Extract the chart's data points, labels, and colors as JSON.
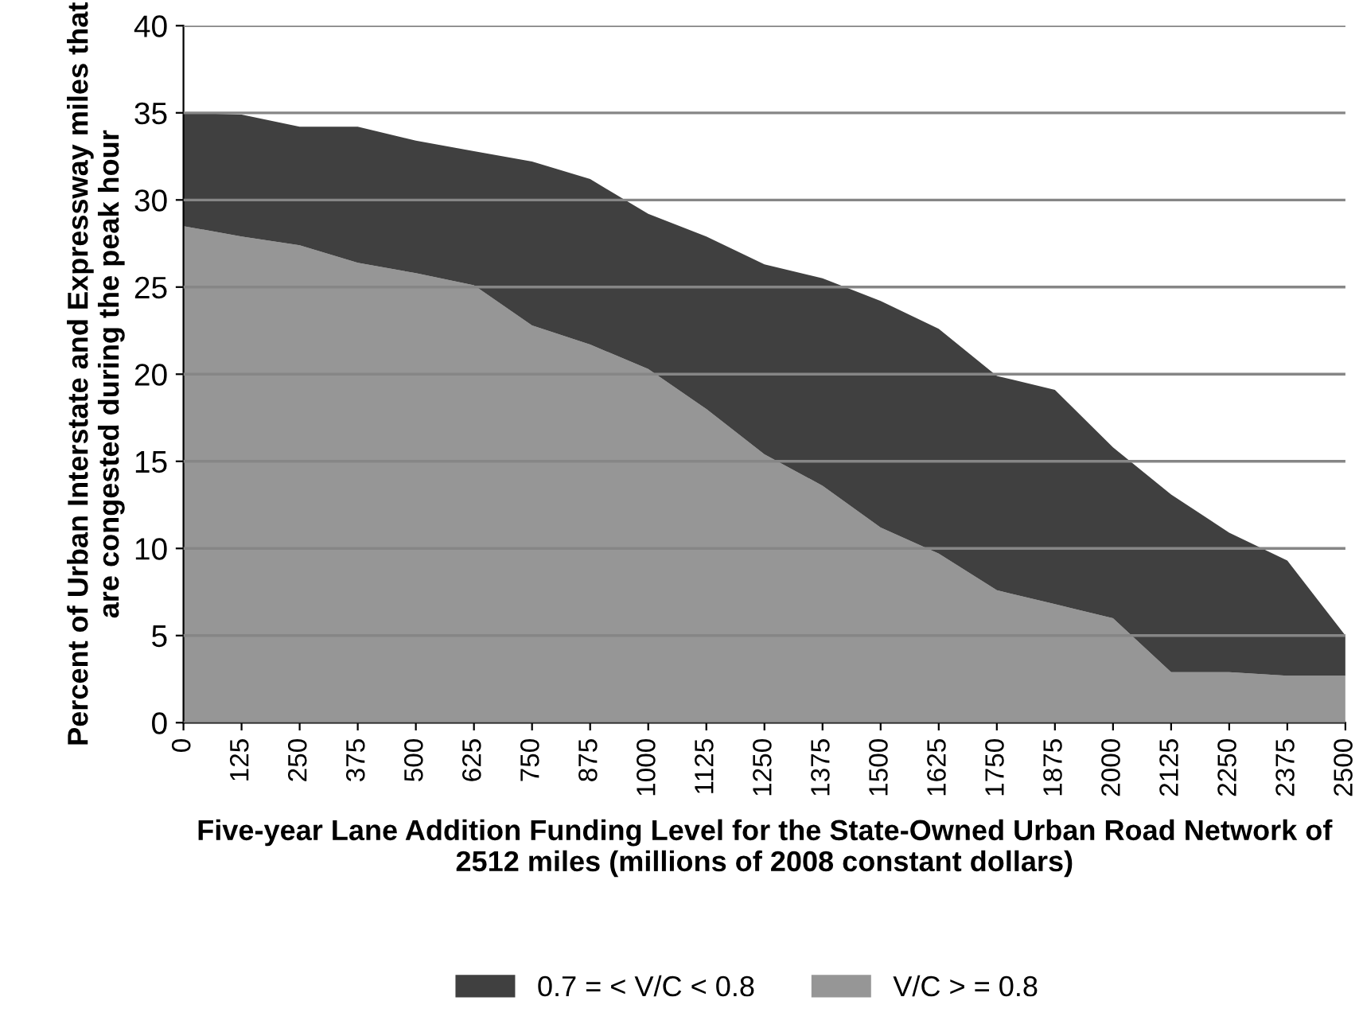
{
  "chart_data": {
    "type": "area",
    "stacked": true,
    "xlabel": "Five-year Lane Addition Funding Level for the State-Owned Urban Road Network of 2512 miles (millions of 2008 constant dollars)",
    "ylabel": "Percent of Urban Interstate and Expressway miles that are congested during the peak hour",
    "categories": [
      "0",
      "125",
      "250",
      "375",
      "500",
      "625",
      "750",
      "875",
      "1000",
      "1125",
      "1250",
      "1375",
      "1500",
      "1625",
      "1750",
      "1875",
      "2000",
      "2125",
      "2250",
      "2375",
      "2500"
    ],
    "series": [
      {
        "name": "V/C > = 0.8",
        "color": "#969696",
        "values": [
          28.5,
          27.9,
          27.4,
          26.4,
          25.8,
          25.1,
          22.8,
          21.7,
          20.3,
          18.0,
          15.4,
          13.6,
          11.2,
          9.7,
          7.6,
          6.8,
          6.0,
          2.9,
          2.9,
          2.7,
          2.7
        ]
      },
      {
        "name": "0.7 = < V/C < 0.8",
        "color": "#404040",
        "values": [
          6.5,
          7.0,
          6.8,
          7.8,
          7.6,
          7.7,
          9.4,
          9.5,
          8.9,
          9.9,
          10.9,
          11.9,
          13.0,
          12.9,
          12.3,
          12.3,
          9.8,
          10.2,
          8.0,
          6.6,
          2.3
        ]
      }
    ],
    "ylim": [
      0,
      40
    ],
    "yticks": [
      0,
      5,
      10,
      15,
      20,
      25,
      30,
      35,
      40
    ],
    "grid": "y",
    "legend": "bottom"
  }
}
